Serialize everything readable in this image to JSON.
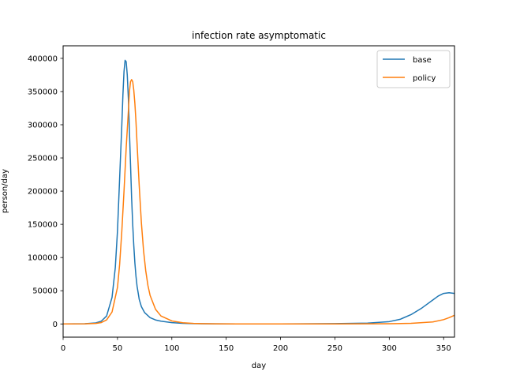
{
  "chart_data": {
    "type": "line",
    "title": "infection rate asymptomatic",
    "xlabel": "day",
    "ylabel": "person/day",
    "xlim": [
      0,
      360
    ],
    "ylim": [
      -19900,
      418900
    ],
    "x_ticks": [
      0,
      50,
      100,
      150,
      200,
      250,
      300,
      350
    ],
    "y_ticks": [
      0,
      50000,
      100000,
      150000,
      200000,
      250000,
      300000,
      350000,
      400000
    ],
    "grid": false,
    "legend_position": "top-right",
    "series": [
      {
        "name": "base",
        "color": "#1f77b4",
        "x": [
          0,
          20,
          30,
          35,
          40,
          45,
          48,
          50,
          52,
          54,
          55,
          56,
          57,
          58,
          59,
          60,
          61,
          62,
          63,
          64,
          65,
          66,
          67,
          68,
          70,
          72,
          75,
          80,
          85,
          90,
          100,
          110,
          120,
          140,
          160,
          200,
          250,
          280,
          300,
          310,
          320,
          330,
          340,
          345,
          350,
          355,
          360
        ],
        "y": [
          0,
          300,
          1500,
          4000,
          12000,
          40000,
          85000,
          140000,
          220000,
          300000,
          345000,
          380000,
          397000,
          395000,
          375000,
          340000,
          290000,
          240000,
          190000,
          150000,
          118000,
          92000,
          72000,
          57000,
          37000,
          26000,
          17000,
          9500,
          6000,
          4200,
          2000,
          900,
          400,
          100,
          20,
          0,
          400,
          1200,
          3500,
          7000,
          14000,
          24000,
          36000,
          42000,
          46000,
          47000,
          46000
        ]
      },
      {
        "name": "policy",
        "color": "#ff7f0e",
        "x": [
          0,
          20,
          30,
          35,
          40,
          45,
          50,
          52,
          54,
          56,
          58,
          60,
          61,
          62,
          63,
          64,
          65,
          66,
          67,
          68,
          69,
          70,
          72,
          74,
          76,
          78,
          80,
          85,
          90,
          100,
          110,
          120,
          140,
          160,
          200,
          250,
          300,
          320,
          340,
          350,
          355,
          360
        ],
        "y": [
          0,
          200,
          800,
          2000,
          6000,
          18000,
          55000,
          90000,
          140000,
          200000,
          265000,
          320000,
          350000,
          365000,
          368000,
          365000,
          352000,
          332000,
          305000,
          272000,
          240000,
          208000,
          152000,
          110000,
          80000,
          58000,
          43000,
          22000,
          12000,
          4500,
          1800,
          700,
          100,
          20,
          0,
          50,
          300,
          900,
          3000,
          6500,
          9500,
          13000
        ]
      }
    ]
  }
}
